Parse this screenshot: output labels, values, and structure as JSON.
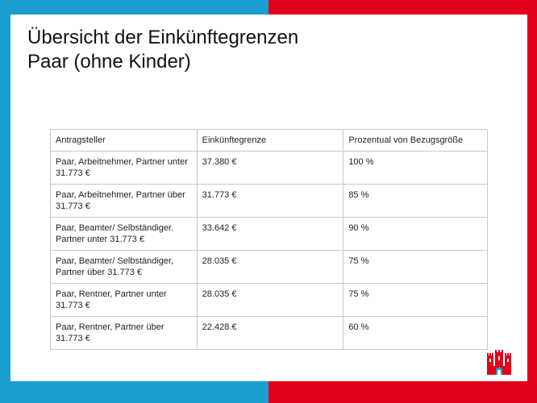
{
  "slide": {
    "title_line1": "Übersicht der Einkünftegrenzen",
    "title_line2": "Paar (ohne Kinder)"
  },
  "table": {
    "headers": [
      "Antragsteller",
      "Einkünftegrenze",
      "Prozentual von Bezugsgröße"
    ],
    "rows": [
      [
        "Paar,  Arbeitnehmer, Partner unter  31.773 €",
        "37.380 €",
        "100 %"
      ],
      [
        "Paar, Arbeitnehmer, Partner über 31.773 €",
        "31.773 €",
        "85 %"
      ],
      [
        "Paar, Beamter/ Selbständiger. Partner unter 31.773 €",
        "33.642 €",
        "90 %"
      ],
      [
        "Paar, Beamter/ Selbständiger, Partner über 31.773 €",
        "28.035 €",
        "75 %"
      ],
      [
        "Paar, Rentner, Partner unter 31.773 €",
        "28.035 €",
        "75 %"
      ],
      [
        "Paar, Rentner, Partner über 31.773 €",
        "22.428 €",
        "60 %"
      ]
    ]
  },
  "colors": {
    "left_band": "#1a9ed0",
    "right_band": "#e2001a",
    "logo_red": "#e2001a",
    "logo_blue": "#1a9ed0"
  },
  "icons": {
    "logo": "hamburg-castle-logo-icon"
  }
}
